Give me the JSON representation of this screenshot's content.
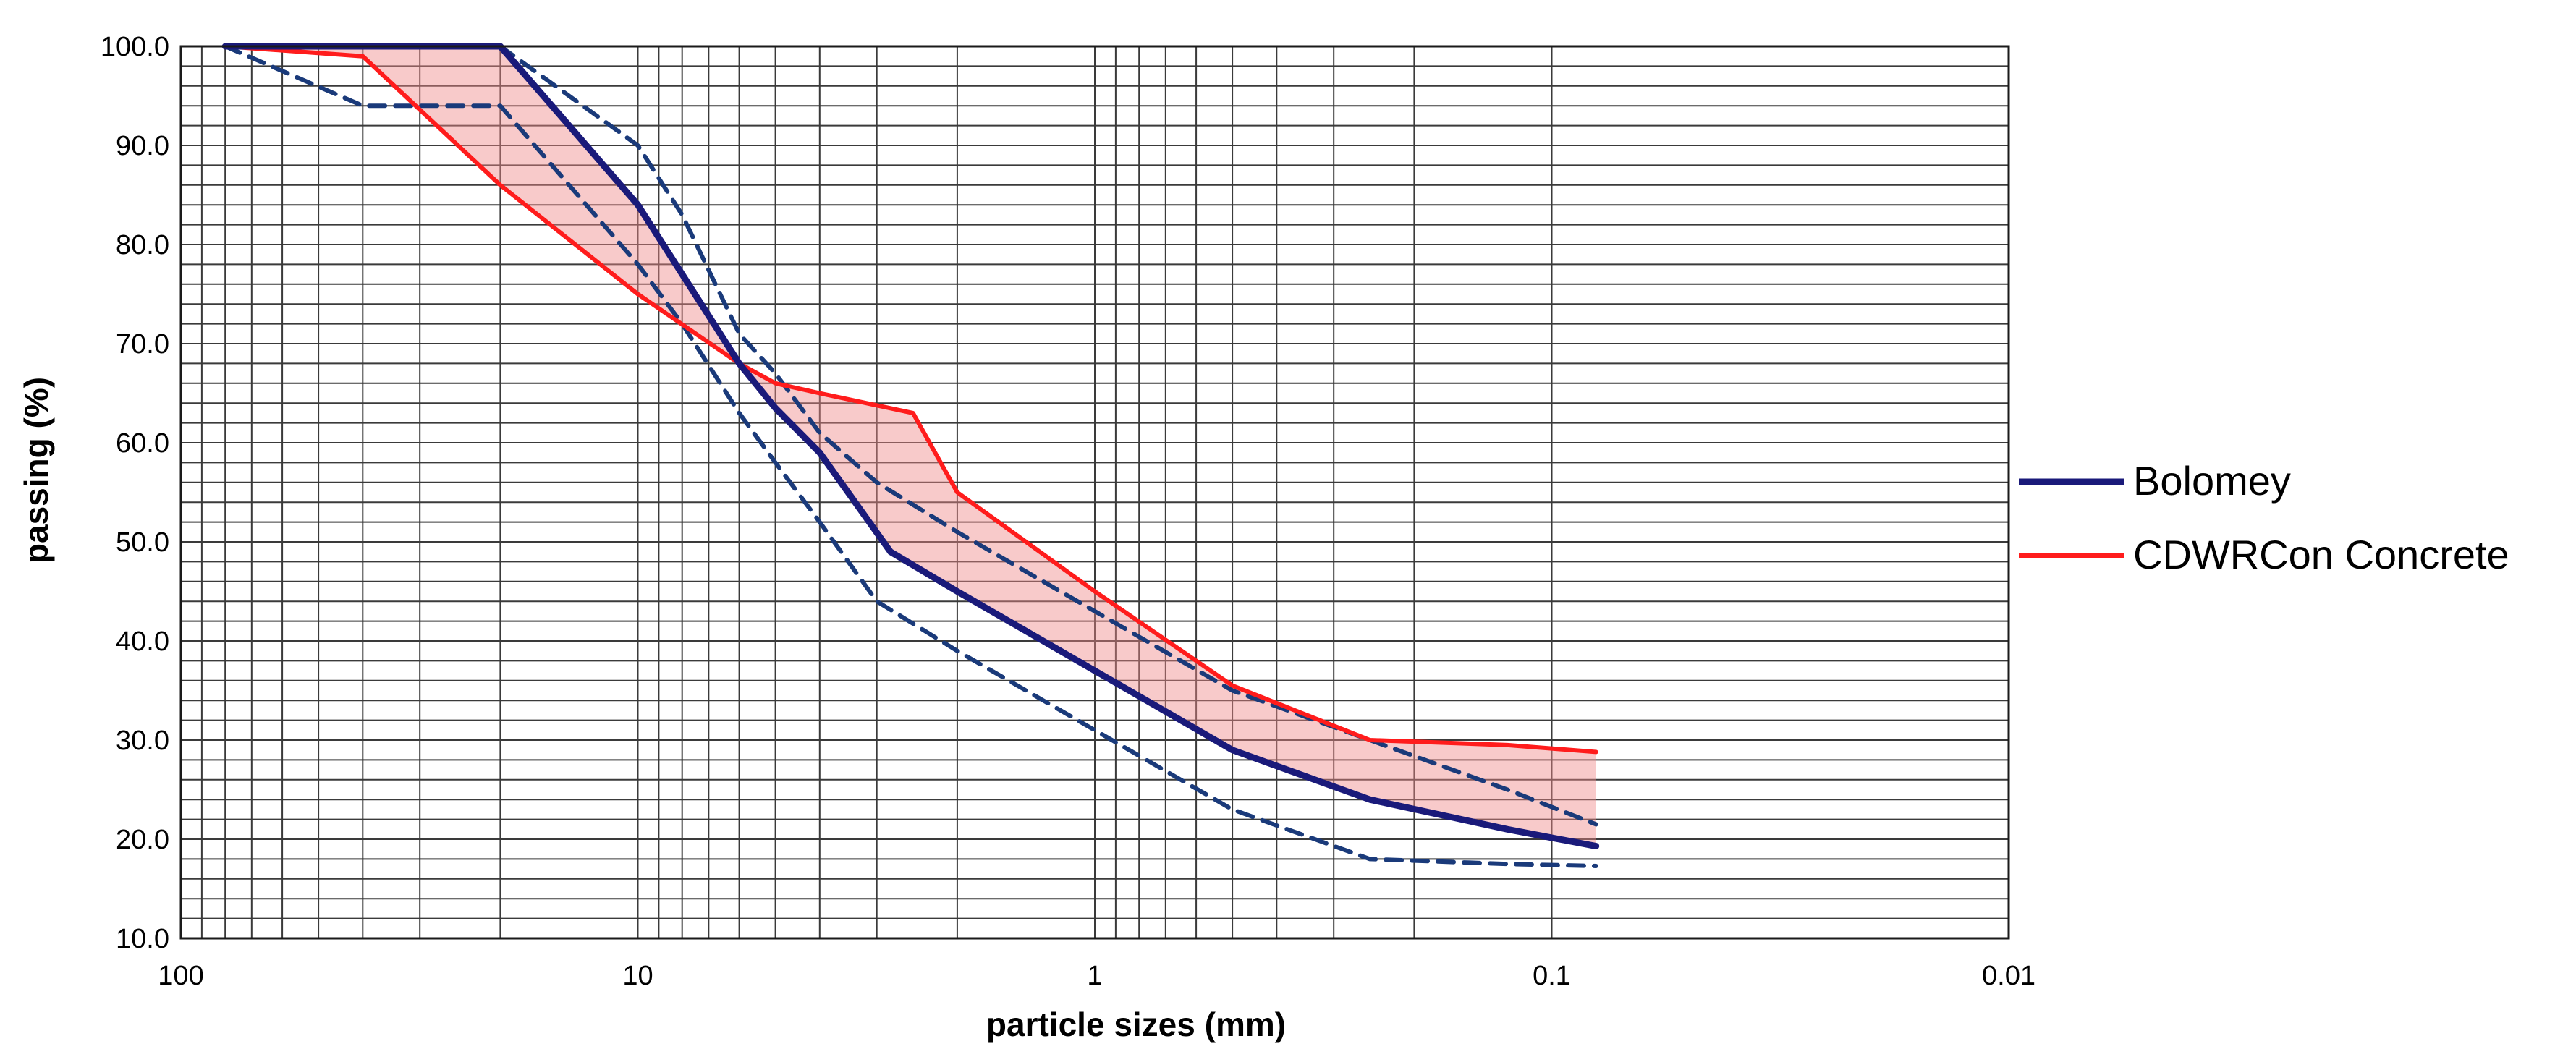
{
  "chart_data": {
    "type": "line",
    "title": "",
    "xlabel": "particle sizes (mm)",
    "ylabel": "passing (%)",
    "x_scale": "log",
    "x_reversed": true,
    "xlim": [
      100,
      0.01
    ],
    "ylim": [
      10,
      100
    ],
    "grid": true,
    "legend_position": "right",
    "x_ticks": [
      100,
      10,
      1,
      0.1,
      0.01
    ],
    "x_tick_labels": [
      "100",
      "10",
      "1",
      "0.1",
      "0.01"
    ],
    "y_ticks": [
      10,
      20,
      30,
      40,
      50,
      60,
      70,
      80,
      90,
      100
    ],
    "y_tick_labels": [
      "10.0",
      "20.0",
      "30.0",
      "40.0",
      "50.0",
      "60.0",
      "70.0",
      "80.0",
      "90.0",
      "100.0"
    ],
    "series": [
      {
        "name": "Bolomey",
        "color": "#1a1a7a",
        "style": "solid",
        "x": [
          80,
          20,
          10,
          6,
          5,
          4,
          2.8,
          2,
          1,
          0.5,
          0.25,
          0.125,
          0.08
        ],
        "y": [
          100,
          100,
          84,
          68,
          63.5,
          59,
          49,
          45,
          37,
          29,
          24,
          21,
          19.3
        ]
      },
      {
        "name": "CDWRCon Concrete",
        "color": "#ff1c1c",
        "style": "solid",
        "x": [
          80,
          40,
          20,
          10,
          6,
          5,
          4,
          2.5,
          2,
          1,
          0.5,
          0.25,
          0.125,
          0.08
        ],
        "y": [
          100,
          99,
          86,
          75,
          68,
          66,
          65,
          63,
          55,
          45,
          35.5,
          30,
          29.5,
          28.8
        ]
      },
      {
        "name": "",
        "color": "#1a3a7a",
        "style": "dashed",
        "x": [
          80,
          40,
          20,
          10,
          8,
          6,
          5,
          4,
          3,
          2,
          1,
          0.5,
          0.25,
          0.125,
          0.08
        ],
        "y": [
          100,
          94,
          94,
          78,
          72,
          63,
          58,
          52,
          44,
          39,
          31,
          23,
          18,
          17.5,
          17.3
        ]
      },
      {
        "name": "",
        "color": "#1a3a7a",
        "style": "dashed",
        "x": [
          20,
          10,
          8,
          6,
          5,
          4,
          3,
          2,
          1,
          0.5,
          0.25,
          0.125,
          0.08
        ],
        "y": [
          100,
          90,
          83,
          71,
          67,
          61,
          56,
          51,
          43,
          35,
          30,
          25,
          21.5
        ]
      }
    ]
  }
}
